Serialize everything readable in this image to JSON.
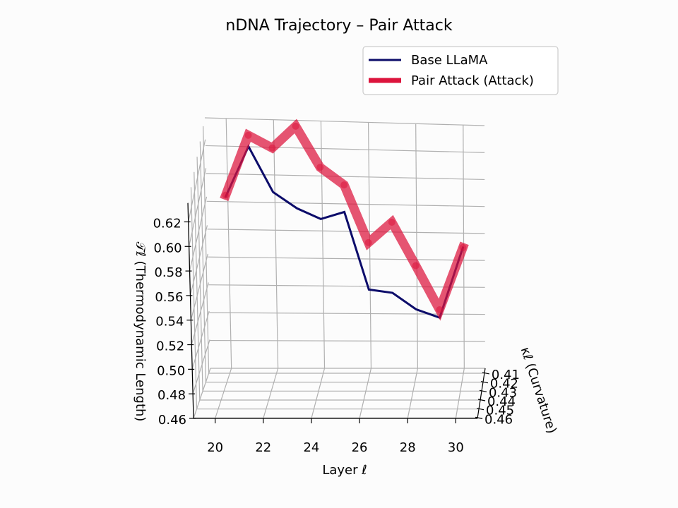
{
  "chart_data": {
    "type": "line",
    "projection": "3d",
    "title": "nDNA Trajectory – Pair Attack",
    "xlabel": "Layer ℓ",
    "ylabel": "κℓ (Curvature)",
    "zlabel": "𝒯ℓ (Thermodynamic Length)",
    "x_ticks": [
      "20",
      "22",
      "24",
      "26",
      "28",
      "30"
    ],
    "y_ticks": [
      "0.41",
      "0.42",
      "0.43",
      "0.44",
      "0.45",
      "0.46"
    ],
    "z_ticks": [
      "0.46",
      "0.48",
      "0.50",
      "0.52",
      "0.54",
      "0.56",
      "0.58",
      "0.60",
      "0.62"
    ],
    "xlim": [
      19.1,
      30.9
    ],
    "ylim": [
      0.4045,
      0.4605
    ],
    "zlim": [
      0.46,
      0.6352
    ],
    "grid": true,
    "legend_position": "top-right",
    "series": [
      {
        "name": "Base LLaMA",
        "color": "#0c0c6a",
        "line_width": 3,
        "x": [
          20,
          21,
          22,
          23,
          24,
          25,
          26,
          27,
          28,
          29,
          30
        ],
        "y": [
          0.411,
          0.411,
          0.411,
          0.411,
          0.411,
          0.411,
          0.411,
          0.411,
          0.411,
          0.411,
          0.411
        ],
        "z": [
          0.587,
          0.624,
          0.592,
          0.581,
          0.574,
          0.58,
          0.523,
          0.521,
          0.509,
          0.503,
          0.557
        ]
      },
      {
        "name": "Pair Attack (Attack)",
        "color": "#dc143c",
        "line_width": 13,
        "opacity": 0.72,
        "x": [
          20,
          21,
          22,
          23,
          24,
          25,
          26,
          27,
          28,
          29,
          30
        ],
        "y": [
          0.411,
          0.411,
          0.411,
          0.411,
          0.411,
          0.411,
          0.411,
          0.411,
          0.411,
          0.411,
          0.411
        ],
        "z": [
          0.588,
          0.632,
          0.624,
          0.641,
          0.612,
          0.6,
          0.558,
          0.574,
          0.542,
          0.509,
          0.557
        ]
      }
    ]
  }
}
